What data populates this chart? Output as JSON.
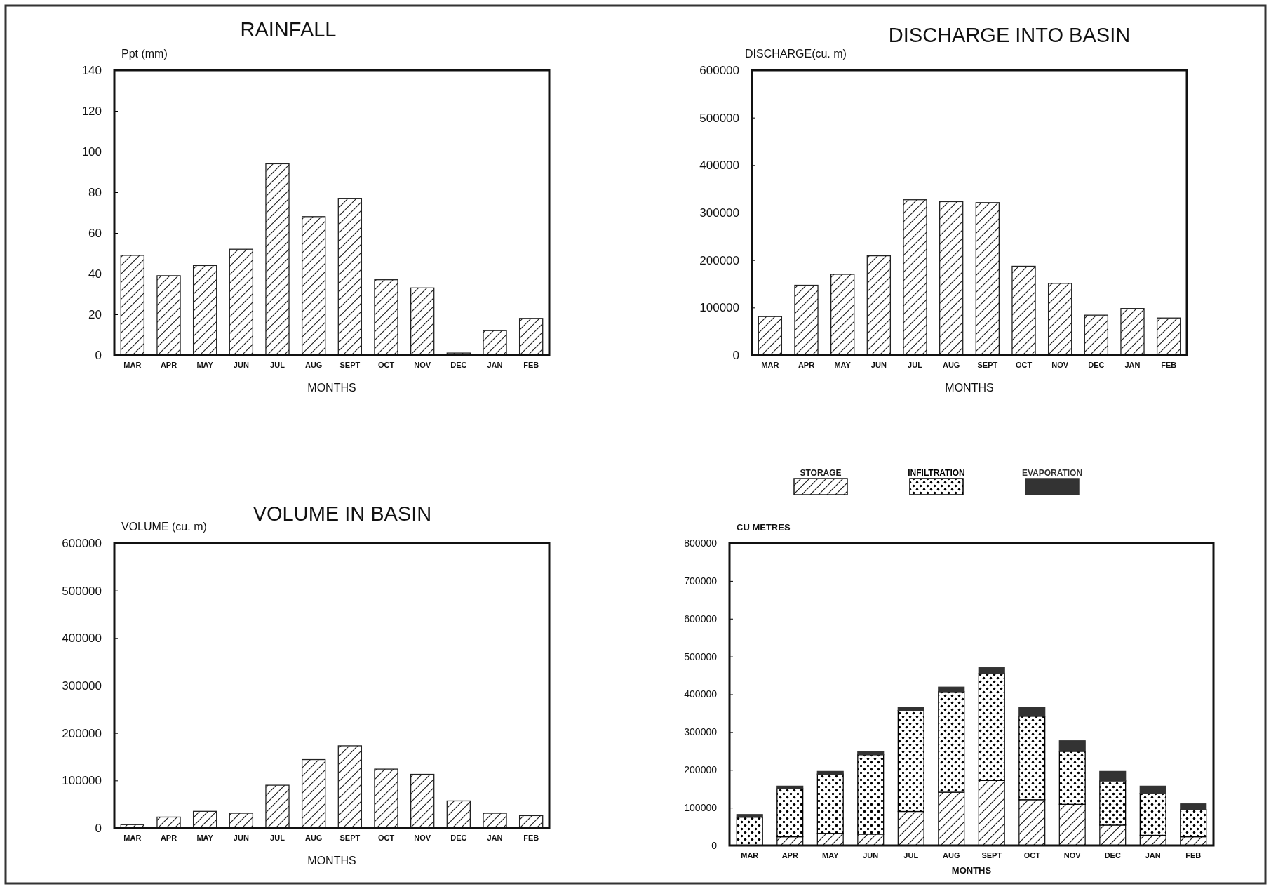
{
  "chart_data": [
    {
      "type": "bar",
      "title": "RAINFALL",
      "ylabel": "Ppt (mm)",
      "xlabel": "MONTHS",
      "categories": [
        "MAR",
        "APR",
        "MAY",
        "JUN",
        "JUL",
        "AUG",
        "SEPT",
        "OCT",
        "NOV",
        "DEC",
        "JAN",
        "FEB"
      ],
      "values": [
        49,
        39,
        44,
        52,
        94,
        68,
        77,
        37,
        33,
        1,
        12,
        18
      ],
      "color": "#222222",
      "ylim": [
        0,
        140
      ],
      "yticks": [
        0,
        20,
        40,
        60,
        80,
        100,
        120,
        140
      ]
    },
    {
      "type": "bar",
      "title": "DISCHARGE INTO BASIN",
      "ylabel": "DISCHARGE(cu. m)",
      "xlabel": "MONTHS",
      "categories": [
        "MAR",
        "APR",
        "MAY",
        "JUN",
        "JUL",
        "AUG",
        "SEPT",
        "OCT",
        "NOV",
        "DEC",
        "JAN",
        "FEB"
      ],
      "values": [
        81000,
        147000,
        170000,
        209000,
        327000,
        323000,
        321000,
        187000,
        151000,
        84000,
        98000,
        78000
      ],
      "color": "#222222",
      "ylim": [
        0,
        600000
      ],
      "yticks": [
        0,
        100000,
        200000,
        300000,
        400000,
        500000,
        600000
      ]
    },
    {
      "type": "bar",
      "title": "VOLUME IN BASIN",
      "ylabel": "VOLUME (cu. m)",
      "xlabel": "MONTHS",
      "categories": [
        "MAR",
        "APR",
        "MAY",
        "JUN",
        "JUL",
        "AUG",
        "SEPT",
        "OCT",
        "NOV",
        "DEC",
        "JAN",
        "FEB"
      ],
      "values": [
        7000,
        23000,
        35000,
        31000,
        90000,
        144000,
        173000,
        124000,
        113000,
        57000,
        31000,
        26000
      ],
      "color": "#222222",
      "ylim": [
        0,
        600000
      ],
      "yticks": [
        0,
        100000,
        200000,
        300000,
        400000,
        500000,
        600000
      ]
    },
    {
      "type": "bar",
      "stacked": true,
      "legend": "top",
      "ylabel": "CU METRES",
      "xlabel": "MONTHS",
      "categories": [
        "MAR",
        "APR",
        "MAY",
        "JUN",
        "JUL",
        "AUG",
        "SEPT",
        "OCT",
        "NOV",
        "DEC",
        "JAN",
        "FEB"
      ],
      "ylim": [
        0,
        800000
      ],
      "yticks": [
        0,
        100000,
        200000,
        300000,
        400000,
        500000,
        600000,
        700000,
        800000
      ],
      "series": [
        {
          "name": "STORAGE",
          "color": "#1a1a1a",
          "values": [
            null,
            23000,
            32000,
            30000,
            90000,
            141000,
            172000,
            121000,
            109000,
            54000,
            27000,
            23000
          ]
        },
        {
          "name": "INFILTRATION",
          "color": "#000000",
          "values": [
            75000,
            127000,
            157000,
            210000,
            267000,
            266000,
            283000,
            221000,
            140000,
            117000,
            111000,
            72000
          ]
        },
        {
          "name": "EVAPORATION",
          "color": "#333333",
          "values": [
            7000,
            7000,
            7000,
            8000,
            8000,
            12000,
            16000,
            23000,
            28000,
            25000,
            19000,
            15000
          ]
        }
      ]
    }
  ]
}
